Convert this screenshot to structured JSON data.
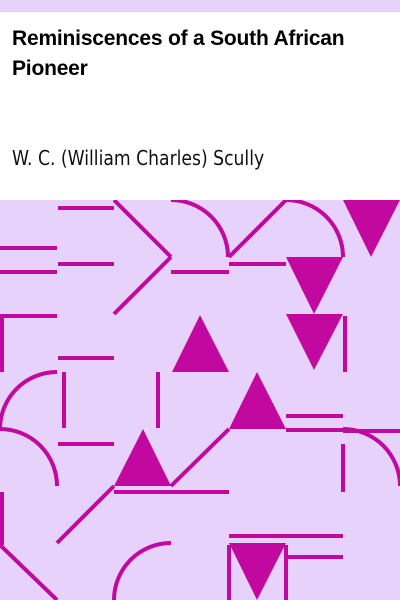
{
  "book": {
    "title": "Reminiscences of a South African Pioneer",
    "author": "W. C. (William Charles) Scully"
  },
  "colors": {
    "background": "#ffffff",
    "pattern_background": "#e6d2fb",
    "pattern_ink": "#c1099f",
    "text": "#000000"
  }
}
